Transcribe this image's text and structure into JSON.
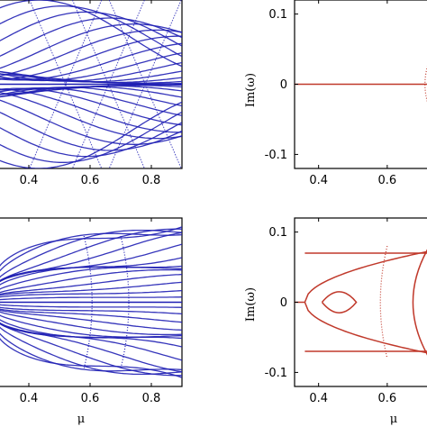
{
  "chart_data": [
    {
      "panel": "top-left",
      "type": "scatter",
      "xlim": [
        0.3,
        0.9
      ],
      "x_ticks": [
        "0.4",
        "0.6",
        "0.8"
      ],
      "x_tick_values": [
        0.4,
        0.6,
        0.8
      ],
      "color": "#1f1fb4",
      "grid": false
    },
    {
      "panel": "top-right",
      "type": "line",
      "ylabel": "Im(ω)",
      "xlim": [
        0.33,
        0.75
      ],
      "ylim": [
        -0.12,
        0.12
      ],
      "x_ticks": [
        "0.4",
        "0.6"
      ],
      "x_tick_values": [
        0.4,
        0.6
      ],
      "y_ticks": [
        "0.1",
        "0",
        "-0.1"
      ],
      "y_tick_values": [
        0.1,
        0,
        -0.1
      ],
      "color": "#c0392b",
      "series": [
        {
          "x": [
            0.33,
            0.745
          ],
          "y": [
            0,
            0
          ]
        }
      ],
      "grid": false
    },
    {
      "panel": "bottom-left",
      "type": "scatter",
      "xlabel": "μ",
      "xlim": [
        0.3,
        0.9
      ],
      "x_ticks": [
        "0.4",
        "0.6",
        "0.8"
      ],
      "x_tick_values": [
        0.4,
        0.6,
        0.8
      ],
      "color": "#1f1fb4",
      "grid": false
    },
    {
      "panel": "bottom-right",
      "type": "line",
      "xlabel": "μ",
      "ylabel": "Im(ω)",
      "xlim": [
        0.33,
        0.75
      ],
      "ylim": [
        -0.12,
        0.12
      ],
      "x_ticks": [
        "0.4",
        "0.6"
      ],
      "x_tick_values": [
        0.4,
        0.6
      ],
      "y_ticks": [
        "0.1",
        "0",
        "-0.1"
      ],
      "y_tick_values": [
        0.1,
        0,
        -0.1
      ],
      "color": "#c0392b",
      "series": [
        {
          "x": [
            0.33,
            0.36
          ],
          "y": [
            0,
            0
          ]
        },
        {
          "x": [
            0.36,
            0.745
          ],
          "y": [
            0.07,
            0.07
          ]
        },
        {
          "x": [
            0.36,
            0.745
          ],
          "y": [
            -0.07,
            -0.07
          ]
        }
      ],
      "grid": false
    }
  ]
}
